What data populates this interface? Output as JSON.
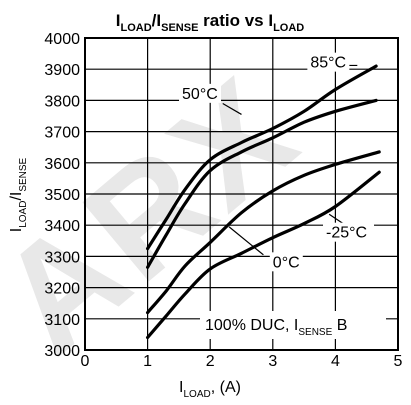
{
  "chart_data": {
    "type": "line",
    "title": {
      "main": "I",
      "sub1": "LOAD",
      "mid": "/I",
      "sub2": "SENSE",
      "rest": " ratio vs I",
      "sub3": "LOAD"
    },
    "xlabel": {
      "main": "I",
      "sub": "LOAD",
      "rest": ", (A)"
    },
    "ylabel": {
      "main": "I",
      "sub1": "LOAD",
      "mid": "/I",
      "sub2": "SENSE"
    },
    "xlim": [
      0,
      5
    ],
    "ylim": [
      3000,
      4000
    ],
    "x_ticks": [
      "0",
      "1",
      "2",
      "3",
      "4",
      "5"
    ],
    "y_ticks": [
      "3000",
      "3100",
      "3200",
      "3300",
      "3400",
      "3500",
      "3600",
      "3700",
      "3800",
      "3900",
      "4000"
    ],
    "grid": true,
    "watermark": "ARX",
    "annotation": {
      "main": "100% DUC, I",
      "sub": "SENSE",
      "rest": " B"
    },
    "series": [
      {
        "name": "85°C",
        "x": [
          1.0,
          1.3,
          1.6,
          2.0,
          2.5,
          3.0,
          3.5,
          4.0,
          4.65
        ],
        "y": [
          3325,
          3420,
          3515,
          3610,
          3665,
          3710,
          3765,
          3835,
          3910
        ]
      },
      {
        "name": "50°C",
        "x": [
          1.0,
          1.3,
          1.6,
          2.0,
          2.5,
          3.0,
          3.5,
          4.0,
          4.65
        ],
        "y": [
          3265,
          3370,
          3470,
          3575,
          3635,
          3680,
          3730,
          3765,
          3800
        ]
      },
      {
        "name": "0°C",
        "x": [
          1.0,
          1.3,
          1.6,
          2.0,
          2.5,
          3.0,
          3.5,
          4.0,
          4.7
        ],
        "y": [
          3120,
          3190,
          3270,
          3345,
          3440,
          3510,
          3560,
          3595,
          3635
        ]
      },
      {
        "name": "-25°C",
        "x": [
          1.0,
          1.3,
          1.6,
          2.0,
          2.5,
          3.0,
          3.5,
          4.0,
          4.7
        ],
        "y": [
          3040,
          3110,
          3180,
          3260,
          3310,
          3360,
          3405,
          3460,
          3570
        ]
      }
    ]
  }
}
